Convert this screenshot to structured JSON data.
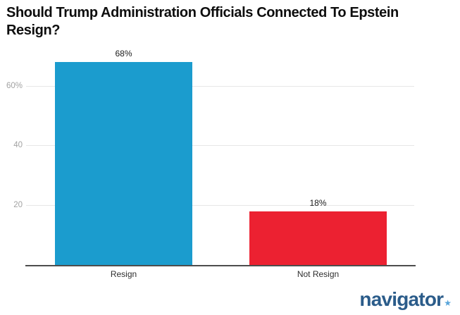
{
  "title": "Should Trump Administration Officials Connected To Epstein Resign?",
  "branding": {
    "logo_text": "navigator",
    "logo_star": "★",
    "logo_color": "#2b5c8a",
    "star_color": "#58a5da"
  },
  "chart_data": {
    "type": "bar",
    "title": "Should Trump Administration Officials Connected To Epstein Resign?",
    "categories": [
      "Resign",
      "Not Resign"
    ],
    "values": [
      68,
      18
    ],
    "value_labels": [
      "68%",
      "18%"
    ],
    "bar_colors": [
      "#1b9cce",
      "#ec2131"
    ],
    "xlabel": "",
    "ylabel": "",
    "ylim": [
      0,
      80
    ],
    "yticks": [
      20,
      40,
      60
    ],
    "ytick_labels": [
      "20",
      "40",
      "60%"
    ],
    "grid": "horizontal-only",
    "legend": "none",
    "colors": {
      "gridline": "#e7e7e7",
      "tick_label": "#a2a2a2",
      "axis_line": "#4d4d4d",
      "data_label": "#1a1a1a"
    }
  }
}
